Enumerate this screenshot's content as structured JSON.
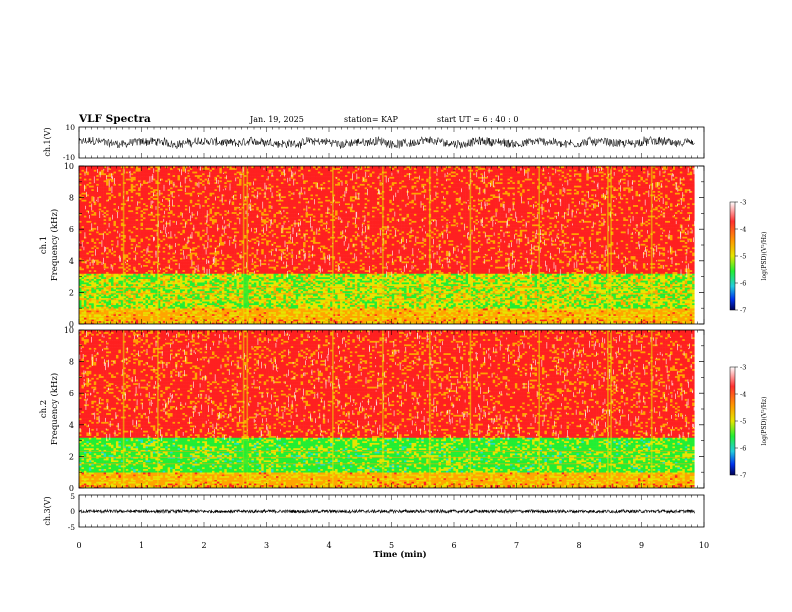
{
  "header": {
    "title": "VLF Spectra",
    "date": "Jan. 19, 2025",
    "station": "station= KAP",
    "start": "start  UT  =   6  : 40 : 0"
  },
  "chart_data": [
    {
      "type": "line",
      "panel": "ch1-waveform",
      "ylabel": "ch.1(V)",
      "ylim": [
        -10,
        10
      ],
      "yticks": [
        "10",
        "-10"
      ],
      "xlim": [
        0,
        10
      ],
      "description_values": {
        "typical_range_V": [
          -4,
          4
        ]
      }
    },
    {
      "type": "heatmap",
      "panel": "ch1-spectrogram",
      "ylabel": "ch.1\nFrequency  (kHz)",
      "ylabel_lines": [
        "ch.1",
        "Frequency  (kHz)"
      ],
      "ylim": [
        0,
        10
      ],
      "yticks": [
        "0",
        "2",
        "4",
        "6",
        "8",
        "10"
      ],
      "xlim": [
        0,
        9.85
      ],
      "colorbar": {
        "label": "log(PSD)(V²/Hz)",
        "range": [
          -7,
          -3
        ],
        "ticks": [
          "-3",
          "-4",
          "-5",
          "-6",
          "-7"
        ]
      },
      "bands_kHz": [
        {
          "from": 0.0,
          "to": 0.3,
          "level": -4.2
        },
        {
          "from": 0.3,
          "to": 1.0,
          "level": -4.3
        },
        {
          "from": 1.0,
          "to": 3.2,
          "level": -4.7
        },
        {
          "from": 3.2,
          "to": 10.0,
          "level": -3.6
        }
      ],
      "bursts_min": [
        0.7,
        1.25,
        2.62,
        2.68,
        4.05,
        4.85,
        5.6,
        6.25,
        7.35,
        8.45,
        8.5,
        9.15
      ]
    },
    {
      "type": "heatmap",
      "panel": "ch2-spectrogram",
      "ylabel": "ch.2\nFrequency  (kHz)",
      "ylabel_lines": [
        "ch.2",
        "Frequency  (kHz)"
      ],
      "ylim": [
        0,
        10
      ],
      "yticks": [
        "0",
        "2",
        "4",
        "6",
        "8",
        "10"
      ],
      "xlim": [
        0,
        9.85
      ],
      "colorbar": {
        "label": "log(PSD)(V²/Hz)",
        "range": [
          -7,
          -3
        ],
        "ticks": [
          "-3",
          "-4",
          "-5",
          "-6",
          "-7"
        ]
      },
      "bands_kHz": [
        {
          "from": 0.0,
          "to": 0.3,
          "level": -4.2
        },
        {
          "from": 0.3,
          "to": 1.0,
          "level": -4.3
        },
        {
          "from": 1.0,
          "to": 3.2,
          "level": -5.0
        },
        {
          "from": 3.2,
          "to": 10.0,
          "level": -3.6
        }
      ],
      "bursts_min": [
        0.7,
        1.25,
        2.62,
        2.68,
        4.05,
        4.85,
        5.6,
        6.25,
        7.35,
        8.45,
        8.5,
        9.15
      ]
    },
    {
      "type": "line",
      "panel": "ch3-waveform",
      "ylabel": "ch.3(V)",
      "ylim": [
        -5,
        5
      ],
      "yticks": [
        "5",
        "0",
        "-5"
      ],
      "xlim": [
        0,
        10
      ],
      "description_values": {
        "typical_range_V": [
          -0.6,
          0.4
        ]
      }
    }
  ],
  "xaxis": {
    "label": "Time  (min)",
    "ticks": [
      "0",
      "1",
      "2",
      "3",
      "4",
      "5",
      "6",
      "7",
      "8",
      "9",
      "10"
    ],
    "range": [
      0,
      10
    ]
  },
  "colors": {
    "red": "#ff2020",
    "orange": "#ffa500",
    "yellow": "#e6e600",
    "green": "#22ee33",
    "cyan": "#22ddcc",
    "blue": "#0033ee",
    "navy": "#000066"
  }
}
